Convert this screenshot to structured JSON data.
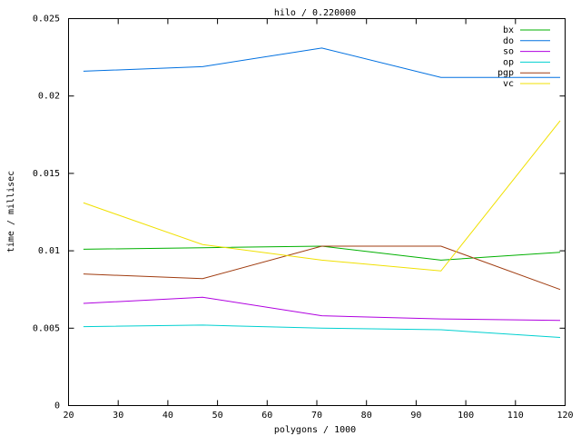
{
  "chart_data": {
    "type": "line",
    "title": "hilo / 0.220000",
    "x_label": "polygons / 1000",
    "y_label": "time / millisec",
    "x": [
      23,
      47,
      71,
      95,
      119
    ],
    "series": [
      {
        "name": "bx",
        "color": "#00b000",
        "values": [
          0.0101,
          0.0102,
          0.0103,
          0.0094,
          0.0099
        ]
      },
      {
        "name": "do",
        "color": "#0070e0",
        "values": [
          0.0216,
          0.0219,
          0.0231,
          0.0212,
          0.0212
        ]
      },
      {
        "name": "so",
        "color": "#b000e0",
        "values": [
          0.0066,
          0.007,
          0.0058,
          0.0056,
          0.0055
        ]
      },
      {
        "name": "op",
        "color": "#00d0d0",
        "values": [
          0.0051,
          0.0052,
          0.005,
          0.0049,
          0.0044
        ]
      },
      {
        "name": "pgp",
        "color": "#a03c10",
        "values": [
          0.0085,
          0.0082,
          0.0103,
          0.0103,
          0.0075
        ]
      },
      {
        "name": "vc",
        "color": "#f0e000",
        "values": [
          0.0131,
          0.0104,
          0.0094,
          0.0087,
          0.0184
        ]
      }
    ],
    "xlim": [
      20,
      120
    ],
    "xticks": [
      20,
      30,
      40,
      50,
      60,
      70,
      80,
      90,
      100,
      110,
      120
    ],
    "ylim": [
      0,
      0.025
    ],
    "yticks": [
      0,
      0.005,
      0.01,
      0.015,
      0.02,
      0.025
    ],
    "legend": "top-right",
    "grid": false
  }
}
